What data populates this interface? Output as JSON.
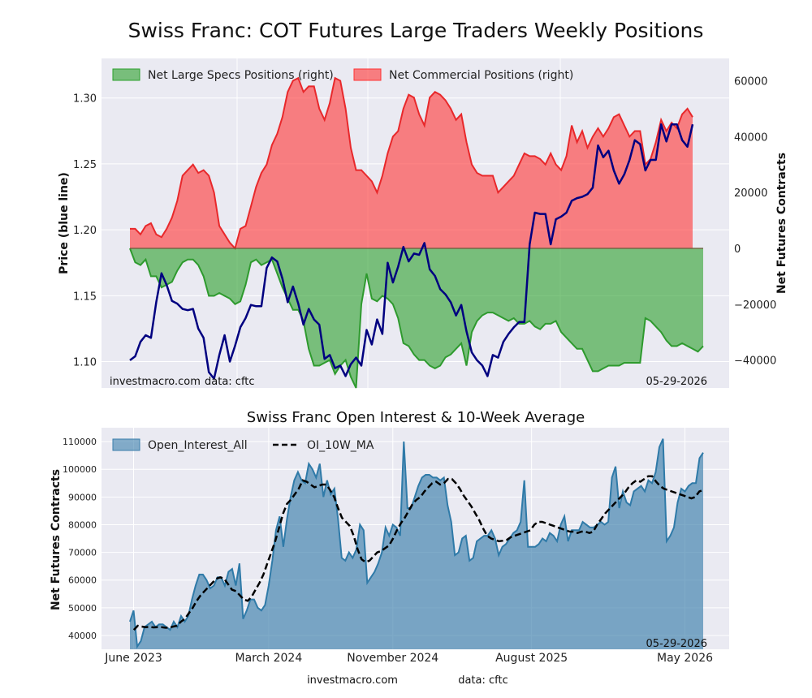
{
  "chart_data": [
    {
      "type": "area",
      "title": "Swiss Franc: COT Futures Large Traders Weekly Positions",
      "ylabel": "Price (blue line)",
      "y2label": "Net Futures Contracts",
      "ylim": [
        1.08,
        1.33
      ],
      "y2lim": [
        -50000,
        68000
      ],
      "yticks": [
        "1.10",
        "1.15",
        "1.20",
        "1.25",
        "1.30"
      ],
      "y2ticks": [
        "−40000",
        "−20000",
        "0",
        "20000",
        "40000",
        "60000"
      ],
      "y2tick_values": [
        -40000,
        -20000,
        0,
        20000,
        40000,
        60000
      ],
      "ytick_values": [
        1.1,
        1.15,
        1.2,
        1.25,
        1.3
      ],
      "legend_position": "top-left",
      "watermark": "investmacro.com",
      "source": "data: cftc",
      "date_label": "05-29-2026",
      "colors": {
        "specs": "#2ca02c",
        "commercial": "#ff3333",
        "price": "#000080"
      },
      "series": [
        {
          "name": "Net Large Specs Positions (right)",
          "axis": "right",
          "values": [
            0,
            -5000,
            -6000,
            -4000,
            -10000,
            -10000,
            -14000,
            -13000,
            -12000,
            -8000,
            -5000,
            -4000,
            -4000,
            -6000,
            -10000,
            -17000,
            -17000,
            -16000,
            -17000,
            -18000,
            -20000,
            -19000,
            -13000,
            -5000,
            -4000,
            -6000,
            -5000,
            -4000,
            -9000,
            -14000,
            -18000,
            -22000,
            -22000,
            -26000,
            -36000,
            -42000,
            -42000,
            -41000,
            -40000,
            -45000,
            -42000,
            -40000,
            -46000,
            -50000,
            -20000,
            -9000,
            -18000,
            -19000,
            -17000,
            -18000,
            -20000,
            -25000,
            -34000,
            -35000,
            -38000,
            -40000,
            -40000,
            -42000,
            -43000,
            -42000,
            -39000,
            -38000,
            -36000,
            -34000,
            -42000,
            -30000,
            -26000,
            -24000,
            -23000,
            -23000,
            -24000,
            -25000,
            -26000,
            -25000,
            -27000,
            -27000,
            -26000,
            -28000,
            -29000,
            -27000,
            -27000,
            -26000,
            -30000,
            -32000,
            -34000,
            -36000,
            -36000,
            -40000,
            -44000,
            -44000,
            -43000,
            -42000,
            -42000,
            -42000,
            -41000,
            -41000,
            -41000,
            -41000,
            -25000,
            -26000,
            -28000,
            -30000,
            -33000,
            -35000,
            -35000,
            -34000,
            -35000,
            -36000,
            -37000,
            -35000
          ]
        },
        {
          "name": "Net Commercial Positions (right)",
          "axis": "right",
          "values": [
            7000,
            7000,
            5000,
            8000,
            9000,
            5000,
            4000,
            7000,
            11000,
            17000,
            26000,
            28000,
            30000,
            27000,
            28000,
            26000,
            20000,
            8000,
            5000,
            2000,
            0,
            7000,
            8000,
            15000,
            22000,
            27000,
            30000,
            37000,
            41000,
            47000,
            56000,
            60000,
            61000,
            56000,
            58000,
            58000,
            50000,
            46000,
            52000,
            61000,
            60000,
            50000,
            36000,
            28000,
            28000,
            26000,
            24000,
            20000,
            26000,
            34000,
            40000,
            42000,
            50000,
            55000,
            54000,
            48000,
            44000,
            54000,
            56000,
            55000,
            53000,
            50000,
            46000,
            48000,
            38000,
            30000,
            27000,
            26000,
            26000,
            26000,
            20000,
            22000,
            24000,
            26000,
            30000,
            34000,
            33000,
            33000,
            32000,
            30000,
            34000,
            30000,
            28000,
            33000,
            44000,
            38000,
            42000,
            36000,
            40000,
            43000,
            40000,
            43000,
            47000,
            48000,
            44000,
            40000,
            42000,
            42000,
            30000,
            32000,
            38000,
            46000,
            42000,
            45000,
            43000,
            48000,
            50000,
            47000
          ]
        },
        {
          "name": "Price",
          "axis": "left",
          "values": [
            1.101,
            1.104,
            1.115,
            1.12,
            1.118,
            1.145,
            1.167,
            1.158,
            1.146,
            1.144,
            1.14,
            1.139,
            1.14,
            1.125,
            1.118,
            1.092,
            1.087,
            1.105,
            1.12,
            1.1,
            1.112,
            1.126,
            1.133,
            1.143,
            1.142,
            1.142,
            1.171,
            1.179,
            1.176,
            1.163,
            1.145,
            1.157,
            1.144,
            1.128,
            1.14,
            1.132,
            1.128,
            1.102,
            1.105,
            1.095,
            1.097,
            1.089,
            1.098,
            1.103,
            1.097,
            1.124,
            1.113,
            1.132,
            1.121,
            1.175,
            1.16,
            1.172,
            1.187,
            1.176,
            1.182,
            1.181,
            1.19,
            1.17,
            1.165,
            1.155,
            1.151,
            1.145,
            1.135,
            1.143,
            1.123,
            1.107,
            1.101,
            1.097,
            1.089,
            1.105,
            1.103,
            1.115,
            1.121,
            1.126,
            1.13,
            1.13,
            1.189,
            1.213,
            1.212,
            1.212,
            1.189,
            1.208,
            1.21,
            1.213,
            1.222,
            1.224,
            1.225,
            1.227,
            1.232,
            1.264,
            1.255,
            1.26,
            1.245,
            1.235,
            1.242,
            1.253,
            1.268,
            1.265,
            1.245,
            1.253,
            1.253,
            1.28,
            1.267,
            1.28,
            1.28,
            1.268,
            1.263,
            1.28
          ]
        }
      ]
    },
    {
      "type": "area",
      "title": "Swiss Franc Open Interest & 10-Week Average",
      "ylabel": "Net Futures Contracts",
      "ylim": [
        35000,
        115000
      ],
      "yticks": [
        "40000",
        "50000",
        "60000",
        "70000",
        "80000",
        "90000",
        "100000",
        "110000"
      ],
      "ytick_values": [
        40000,
        50000,
        60000,
        70000,
        80000,
        90000,
        100000,
        110000
      ],
      "x_tick_labels": [
        "June 2023",
        "March 2024",
        "November 2024",
        "August 2025",
        "May 2026"
      ],
      "x_tick_index": [
        1,
        38,
        72,
        110,
        152
      ],
      "legend_position": "top-left",
      "watermark": "investmacro.com",
      "source": "data: cftc",
      "date_label": "05-29-2026",
      "colors": {
        "oi": "#3b7eab",
        "ma": "#000000"
      },
      "series": [
        {
          "name": "Open_Interest_All",
          "values": [
            45000,
            49000,
            36000,
            38000,
            43000,
            44000,
            45000,
            43000,
            44000,
            44000,
            43000,
            42000,
            45000,
            43000,
            47000,
            45000,
            47000,
            53000,
            58000,
            62000,
            62000,
            60000,
            57000,
            58000,
            61000,
            61000,
            58000,
            63000,
            64000,
            58000,
            66000,
            46000,
            49000,
            53000,
            53000,
            50000,
            49000,
            51000,
            58000,
            67000,
            78000,
            83000,
            72000,
            82000,
            90000,
            96000,
            99000,
            96000,
            95000,
            102000,
            100000,
            97000,
            102000,
            90000,
            96000,
            91000,
            93000,
            82000,
            68000,
            67000,
            70000,
            68000,
            71000,
            80000,
            78000,
            59000,
            61000,
            63000,
            66000,
            70000,
            79000,
            76000,
            80000,
            79000,
            76000,
            110000,
            86000,
            86000,
            90000,
            94000,
            97000,
            98000,
            98000,
            97000,
            97000,
            96000,
            97000,
            87000,
            81000,
            69000,
            70000,
            75000,
            76000,
            67000,
            68000,
            74000,
            75000,
            76000,
            76000,
            78000,
            75000,
            69000,
            72000,
            73000,
            75000,
            77000,
            78000,
            81000,
            96000,
            72000,
            72000,
            72000,
            73000,
            75000,
            74000,
            77000,
            76000,
            74000,
            80000,
            83000,
            74000,
            78000,
            78000,
            78000,
            81000,
            80000,
            79000,
            79000,
            80000,
            81000,
            80000,
            81000,
            97000,
            101000,
            86000,
            92000,
            88000,
            87000,
            92000,
            93000,
            94000,
            92000,
            96000,
            95000,
            99000,
            108000,
            111000,
            74000,
            76000,
            79000,
            88000,
            93000,
            92000,
            94000,
            95000,
            95000,
            104000,
            106000
          ],
          "start_offset": 0
        },
        {
          "name": "OI_10W_MA",
          "values": [
            42000,
            43500,
            43200,
            43000,
            43100,
            42900,
            43000,
            43000,
            42800,
            42800,
            43200,
            43500,
            45000,
            46000,
            48000,
            50000,
            52500,
            54500,
            56000,
            57500,
            59000,
            60500,
            61000,
            60500,
            58500,
            56500,
            56000,
            54500,
            53000,
            52500,
            54000,
            56500,
            59000,
            62000,
            66000,
            70000,
            74000,
            79000,
            84000,
            87500,
            89000,
            91000,
            93000,
            96000,
            95500,
            94500,
            93500,
            94000,
            94500,
            94500,
            92500,
            90000,
            86000,
            82500,
            81000,
            79500,
            76000,
            71000,
            67500,
            66500,
            67000,
            68500,
            70000,
            70500,
            71500,
            72500,
            75000,
            78000,
            80500,
            82500,
            85000,
            87500,
            89000,
            90000,
            92000,
            93500,
            95000,
            95500,
            94500,
            95000,
            96500,
            96500,
            95000,
            93000,
            90500,
            88500,
            86500,
            84000,
            81500,
            78500,
            76000,
            75000,
            74500,
            74000,
            74200,
            74500,
            75500,
            76000,
            76500,
            77000,
            77500,
            78000,
            80000,
            81000,
            81000,
            80500,
            80000,
            79500,
            79000,
            78500,
            78000,
            77500,
            77500,
            77000,
            77500,
            77500,
            77000,
            77500,
            80000,
            82000,
            84000,
            85500,
            87000,
            88500,
            90000,
            91500,
            93500,
            95000,
            96000,
            95500,
            96500,
            97500,
            97500,
            95500,
            94000,
            93000,
            92500,
            92000,
            91500,
            91000,
            90500,
            90000,
            89500,
            90000,
            92000,
            92500
          ],
          "start_offset": 1
        }
      ]
    }
  ]
}
